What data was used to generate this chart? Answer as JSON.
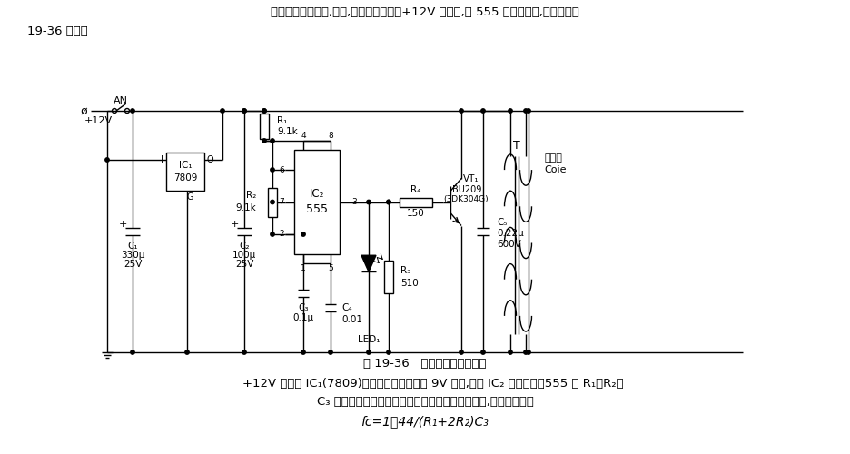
{
  "top_line1": "本点火器电路简单,实用,它利用汽车上的+12V 电压源,以 555 为核心组成,其电路如图",
  "top_line2": "19-36 所示。",
  "caption": "图 19-36   汽车电子点火器电路",
  "bot_line1": "    +12V 电压经 IC₁(7809)三端稳压器稳压输出 9V 电压,作为 IC₂ 的供电源。555 和 R₁、R₂、",
  "bot_line2": "C₃ 等组成一个无稳态多谐振荡器。一旦得电便起振,其振荡频率为",
  "bot_formula": "fᴄ=1．44/(R₁+2R₂)C₃",
  "bg_color": "#ffffff"
}
